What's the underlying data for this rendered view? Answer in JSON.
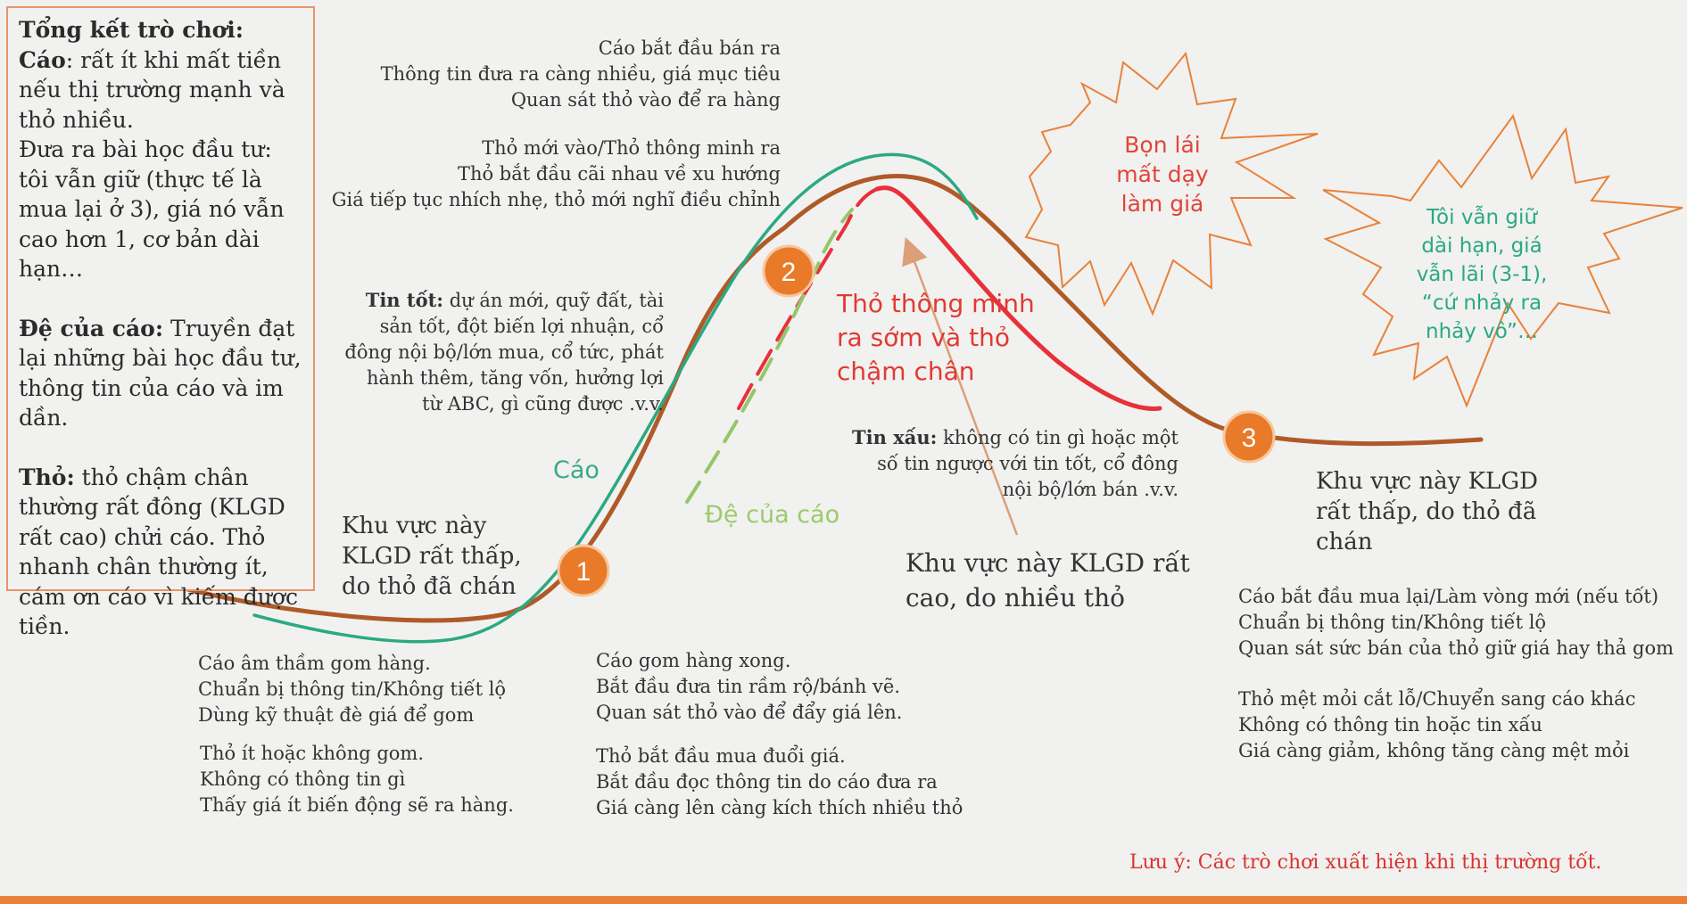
{
  "colors": {
    "fox": "#2aa983",
    "main_curve": "#b05a28",
    "smart_rabbit": "#e8303a",
    "fox_follower": "#94c66a",
    "marker": "#e87a2a",
    "arrow": "#dba079",
    "burst_border": "#e8823a",
    "burst_left_text": "#e0453a",
    "burst_right_text": "#2aa983"
  },
  "summary": {
    "title": "Tổng kết trò chơi:",
    "fox_label": "Cáo",
    "fox_text_1": ": rất ít khi mất tiền nếu thị trường mạnh và thỏ nhiều.",
    "fox_text_2": "Đưa ra bài học đầu tư: tôi vẫn giữ (thực tế là mua lại ở 3), giá nó vẫn cao hơn 1, cơ bản dài hạn…",
    "follower_label": "Đệ của cáo:",
    "follower_text": " Truyền đạt lại những bài học đầu tư, thông tin của cáo và im dần.",
    "rabbit_label": "Thỏ:",
    "rabbit_text": " thỏ chậm chân thường rất đông (KLGD rất cao) chửi cáo. Thỏ nhanh chân thường ít, cám ơn cáo vì kiếm được tiền."
  },
  "top_center": {
    "group_1": [
      "Cáo bắt đầu bán ra",
      "Thông tin đưa ra càng nhiều, giá mục tiêu",
      "Quan sát thỏ vào để ra hàng"
    ],
    "group_2": [
      "Thỏ mới vào/Thỏ thông minh ra",
      "Thỏ bắt đầu cãi nhau về xu hướng",
      "Giá tiếp tục nhích nhẹ, thỏ mới nghĩ điều chỉnh"
    ]
  },
  "good_news": {
    "label": "Tin tốt:",
    "text": " dự án mới, quỹ đất, tài sản tốt, đột biến lợi nhuận, cổ đông nội bộ/lớn mua, cổ tức, phát hành thêm, tăng vốn, hưởng lợi từ ABC, gì cũng được .v.v."
  },
  "bad_news": {
    "label": "Tin xấu:",
    "text": " không có tin gì hoặc một số tin ngược với tin tốt, cổ đông nội bộ/lớn bán .v.v."
  },
  "labels": {
    "fox": "Cáo",
    "fox_follower": "Đệ của cáo",
    "smart_rabbit": [
      "Thỏ thông minh",
      "ra sớm và thỏ",
      "chậm chân"
    ]
  },
  "klgd": {
    "low_left": [
      "Khu vực này",
      "KLGD rất thấp,",
      "do thỏ đã chán"
    ],
    "high_center": [
      "Khu vực này KLGD rất",
      "cao, do nhiều thỏ"
    ],
    "low_right": [
      "Khu vực này KLGD",
      "rất thấp, do thỏ đã",
      "chán"
    ]
  },
  "markers": [
    "1",
    "2",
    "3"
  ],
  "bursts": {
    "left": [
      "Bọn lái",
      "mất dạy",
      "làm giá"
    ],
    "right": [
      "Tôi vẫn giữ",
      "dài hạn, giá",
      "vẫn lãi (3-1),",
      "“cứ nhảy ra",
      "nhảy vô”…"
    ]
  },
  "bottom_left": {
    "group_1": [
      "Cáo âm thầm gom hàng.",
      "Chuẩn bị thông tin/Không tiết lộ",
      "Dùng kỹ thuật đè giá để gom"
    ],
    "group_2": [
      "Thỏ ít hoặc không gom.",
      "Không có thông tin gì",
      "Thấy giá ít biến động sẽ ra hàng."
    ]
  },
  "bottom_center": {
    "group_1": [
      "Cáo gom hàng xong.",
      "Bắt đầu đưa tin rầm rộ/bánh vẽ.",
      "Quan sát thỏ vào để đẩy giá lên."
    ],
    "group_2": [
      "Thỏ bắt đầu mua đuổi giá.",
      "Bắt đầu đọc thông tin do cáo đưa ra",
      "Giá càng lên càng kích thích nhiều thỏ"
    ]
  },
  "bottom_right": {
    "group_1": [
      "Cáo bắt đầu mua lại/Làm vòng mới (nếu tốt)",
      "Chuẩn bị thông tin/Không tiết lộ",
      "Quan sát sức bán của thỏ giữ giá hay thả gom"
    ],
    "group_2": [
      "Thỏ mệt mỏi cắt lỗ/Chuyển sang cáo khác",
      "Không có thông tin hoặc tin xấu",
      "Giá càng giảm, không tăng càng mệt mỏi"
    ]
  },
  "note": "Lưu ý: Các trò chơi xuất hiện khi thị trường tốt."
}
